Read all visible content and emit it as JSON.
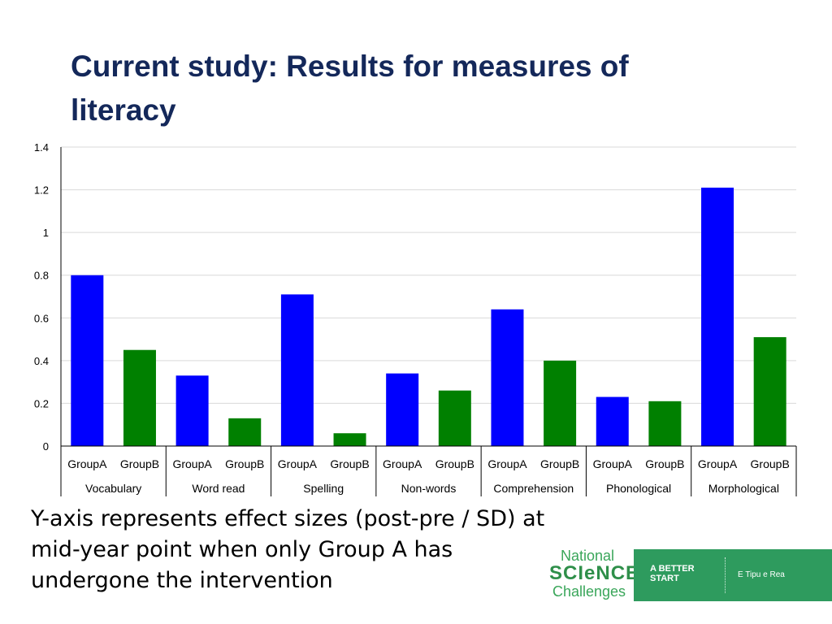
{
  "slide": {
    "title": "Current study: Results for measures of literacy",
    "caption": "Y-axis represents effect sizes (post-pre / SD) at mid-year point when only Group A has undergone the intervention"
  },
  "logo": {
    "line1": "National",
    "line2": "SCIeNCE",
    "line3": "Challenges",
    "tagline": "A BETTER START",
    "maori": "E Tipu e Rea"
  },
  "chart_data": {
    "type": "bar",
    "title": "",
    "xlabel": "",
    "ylabel": "",
    "ylim": [
      0,
      1.4
    ],
    "yticks": [
      "0",
      "0.2",
      "0.4",
      "0.6",
      "0.8",
      "1",
      "1.2",
      "1.4"
    ],
    "grid": true,
    "categories": [
      "Vocabulary",
      "Word read",
      "Spelling",
      "Non-words",
      "Comprehension",
      "Phonological",
      "Morphological"
    ],
    "series": [
      {
        "name": "GroupA",
        "color": "#0000ff",
        "values": [
          0.8,
          0.33,
          0.71,
          0.34,
          0.64,
          0.23,
          1.21
        ]
      },
      {
        "name": "GroupB",
        "color": "#008000",
        "values": [
          0.45,
          0.13,
          0.06,
          0.26,
          0.4,
          0.21,
          0.51
        ]
      }
    ]
  }
}
